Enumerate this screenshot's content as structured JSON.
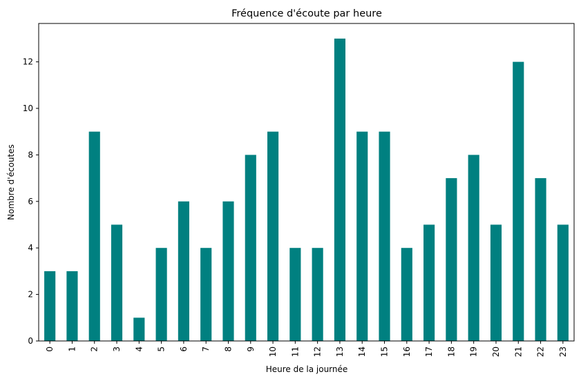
{
  "chart_data": {
    "type": "bar",
    "title": "Fréquence d'écoute par heure",
    "xlabel": "Heure de la journée",
    "ylabel": "Nombre d'écoutes",
    "categories": [
      "0",
      "1",
      "2",
      "3",
      "4",
      "5",
      "6",
      "7",
      "8",
      "9",
      "10",
      "11",
      "12",
      "13",
      "14",
      "15",
      "16",
      "17",
      "18",
      "19",
      "20",
      "21",
      "22",
      "23"
    ],
    "values": [
      3,
      3,
      9,
      5,
      1,
      4,
      6,
      4,
      6,
      8,
      9,
      4,
      4,
      13,
      9,
      9,
      4,
      5,
      7,
      8,
      5,
      12,
      7,
      5
    ],
    "ylim": [
      0,
      13.65
    ],
    "yticks": [
      0,
      2,
      4,
      6,
      8,
      10,
      12
    ],
    "grid": false,
    "bar_color": "#008080"
  }
}
